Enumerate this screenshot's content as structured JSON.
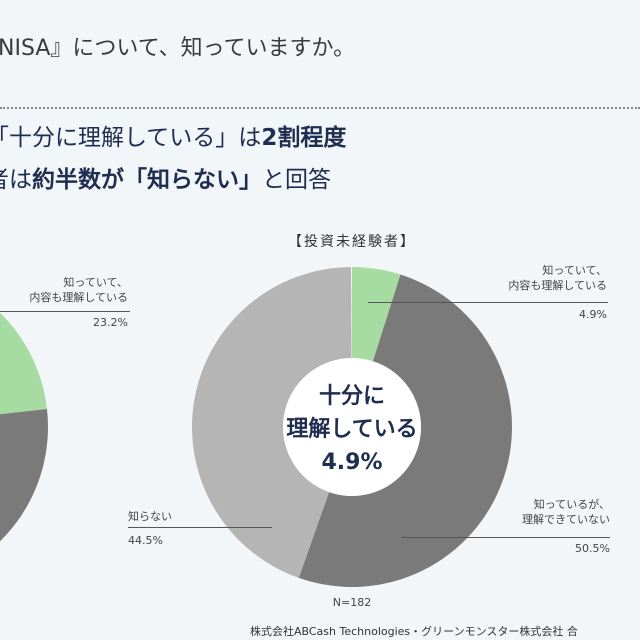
{
  "question": "NISA』について、知っていますか。",
  "headline": {
    "line1_a": "「十分に理解している」は",
    "line1_b": "2割程度",
    "line2_a": "者は",
    "line2_b": "約半数が「知らない」",
    "line2_c": "と回答"
  },
  "chart_data": [
    {
      "type": "pie",
      "donut": true,
      "segments": [
        {
          "label": "知っていて、内容も理解している",
          "value": 23.2,
          "color": "#a6dca2"
        }
      ],
      "remainder_color": "#7a7a7a",
      "labels": {
        "line1": "知っていて、",
        "line2": "内容も理解している",
        "value": "23.2%"
      }
    },
    {
      "type": "pie",
      "donut": true,
      "title": "【投資未経験者】",
      "segments": [
        {
          "label": "知っていて、内容も理解している",
          "value": 4.9,
          "color": "#a6dca2"
        },
        {
          "label": "知っているが、理解できていない",
          "value": 50.5,
          "color": "#7a7a7a"
        },
        {
          "label": "知らない",
          "value": 44.5,
          "color": "#b5b5b5"
        }
      ],
      "labels": {
        "a1": "知っていて、",
        "a2": "内容も理解している",
        "av": "4.9%",
        "b1": "知っているが、",
        "b2": "理解できていない",
        "bv": "50.5%",
        "c1": "知らない",
        "cv": "44.5%"
      },
      "center": {
        "line1": "十分に",
        "line2": "理解している",
        "value": "4.9%"
      },
      "n": "N=182"
    }
  ],
  "footer": "株式会社ABCash Technologies・グリーンモンスター株式会社 合"
}
